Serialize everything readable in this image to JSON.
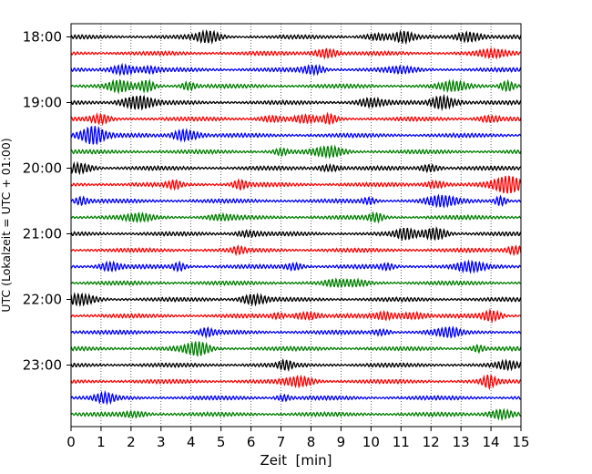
{
  "chart_data": {
    "type": "line",
    "title": "",
    "xlabel": "Zeit  [min]",
    "ylabel": "UTC (Lokalzeit = UTC + 01:00)",
    "xlim": [
      0,
      15
    ],
    "x_ticks": [
      0,
      1,
      2,
      3,
      4,
      5,
      6,
      7,
      8,
      9,
      10,
      11,
      12,
      13,
      14,
      15
    ],
    "y_tick_labels": [
      "18:00",
      "19:00",
      "20:00",
      "21:00",
      "22:00",
      "23:00"
    ],
    "trace_start_times": [
      "18:00",
      "18:15",
      "18:30",
      "18:45",
      "19:00",
      "19:15",
      "19:30",
      "19:45",
      "20:00",
      "20:15",
      "20:30",
      "20:45",
      "21:00",
      "21:15",
      "21:30",
      "21:45",
      "22:00",
      "22:15",
      "22:30",
      "22:45",
      "23:00",
      "23:15",
      "23:30",
      "23:45"
    ],
    "trace_minutes_each": 15,
    "color_cycle": [
      "#000000",
      "#ff0000",
      "#0000ff",
      "#008000"
    ],
    "grid": "vertical dotted lines at each minute",
    "legend": "none"
  }
}
